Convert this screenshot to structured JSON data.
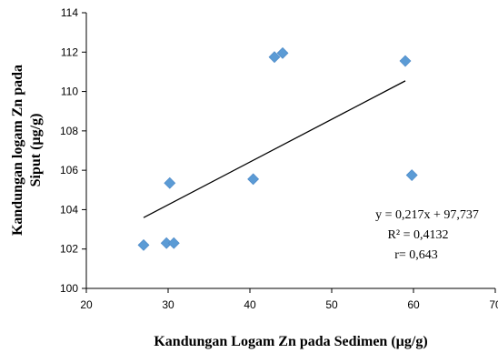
{
  "chart_data": {
    "type": "scatter",
    "title": "",
    "xlabel": "Kandungan  Logam  Zn  pada Sedimen (µg/g)",
    "ylabel_lines": [
      "Kandungan  logam  Zn pada",
      "Siput  (µg/g)"
    ],
    "xlim": [
      20,
      70
    ],
    "ylim": [
      100,
      114
    ],
    "xticks": [
      20,
      30,
      40,
      50,
      60,
      70
    ],
    "yticks": [
      100,
      102,
      104,
      106,
      108,
      110,
      112,
      114
    ],
    "grid": false,
    "legend": "none",
    "marker_color": "#5b9bd5",
    "line_color": "#000000",
    "points": [
      {
        "x": 27.0,
        "y": 102.2
      },
      {
        "x": 29.8,
        "y": 102.3
      },
      {
        "x": 30.2,
        "y": 105.35
      },
      {
        "x": 30.7,
        "y": 102.3
      },
      {
        "x": 40.4,
        "y": 105.55
      },
      {
        "x": 43.0,
        "y": 111.75
      },
      {
        "x": 44.0,
        "y": 111.95
      },
      {
        "x": 59.0,
        "y": 111.55
      },
      {
        "x": 59.8,
        "y": 105.75
      }
    ],
    "trendline": {
      "slope": 0.217,
      "intercept": 97.737,
      "x_range": [
        27.0,
        59.0
      ]
    },
    "annotations": [
      "y = 0,217x   + 97,737",
      "R² = 0,4132",
      "r= 0,643"
    ]
  }
}
